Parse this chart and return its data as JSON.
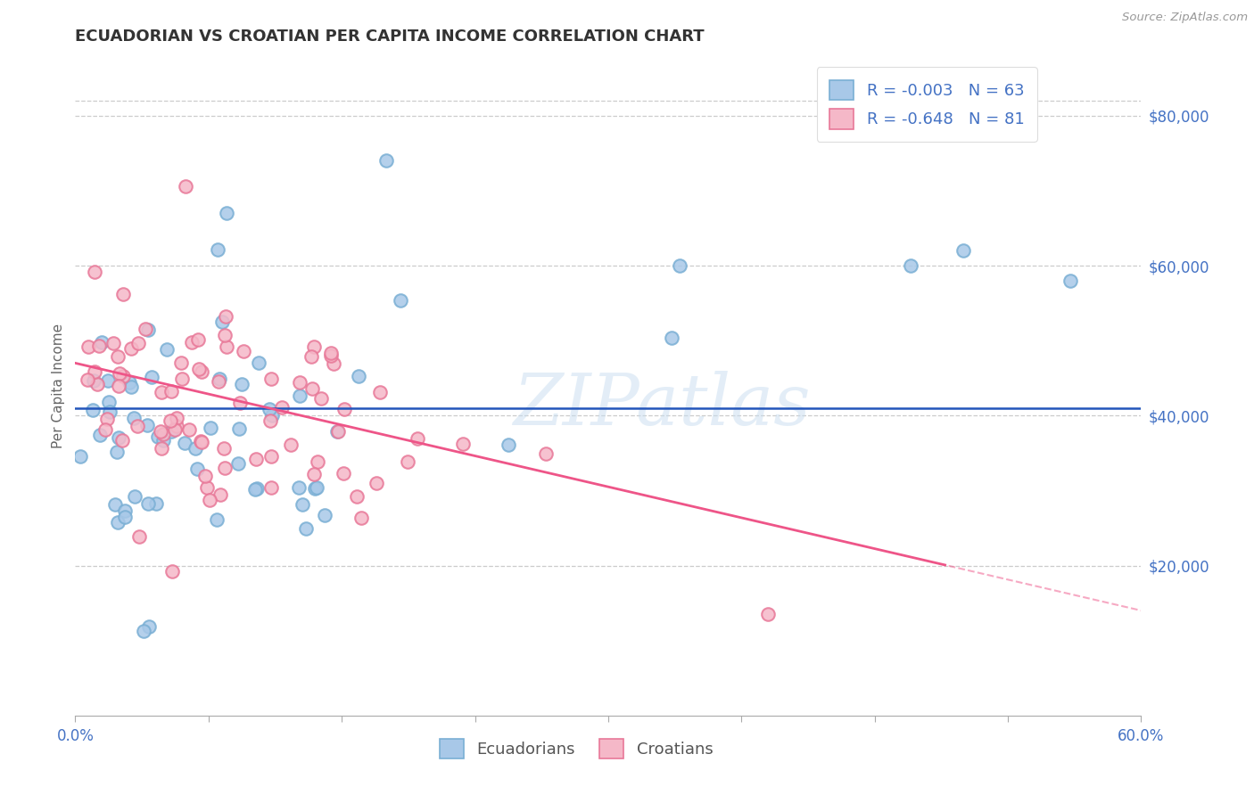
{
  "title": "ECUADORIAN VS CROATIAN PER CAPITA INCOME CORRELATION CHART",
  "source": "Source: ZipAtlas.com",
  "ylabel": "Per Capita Income",
  "xlim": [
    0.0,
    0.6
  ],
  "ylim": [
    0,
    88000
  ],
  "yticks": [
    0,
    20000,
    40000,
    60000,
    80000
  ],
  "ytick_labels": [
    "",
    "$20,000",
    "$40,000",
    "$60,000",
    "$80,000"
  ],
  "xticks": [
    0.0,
    0.075,
    0.15,
    0.225,
    0.3,
    0.375,
    0.45,
    0.525,
    0.6
  ],
  "xtick_labels_visible": [
    "0.0%",
    "",
    "",
    "",
    "",
    "",
    "",
    "",
    "60.0%"
  ],
  "blue_color": "#a8c8e8",
  "pink_color": "#f5b8c8",
  "blue_edge_color": "#7aafd4",
  "pink_edge_color": "#e87898",
  "blue_line_color": "#2255bb",
  "pink_line_color": "#ee5588",
  "legend_blue_label": "R = -0.003   N = 63",
  "legend_pink_label": "R = -0.648   N = 81",
  "legend_ecuadorians": "Ecuadorians",
  "legend_croatians": "Croatians",
  "watermark": "ZIPatlas",
  "title_fontsize": 13,
  "axis_color": "#4472c4",
  "tick_color": "#4472c4",
  "ecuadorian_N": 63,
  "croatian_N": 81,
  "blue_line_y": 41000,
  "pink_intercept": 47000,
  "pink_slope": -55000,
  "grid_color": "#cccccc",
  "background_color": "#ffffff",
  "dot_size": 110,
  "dot_alpha": 0.85,
  "dot_linewidth": 1.5
}
